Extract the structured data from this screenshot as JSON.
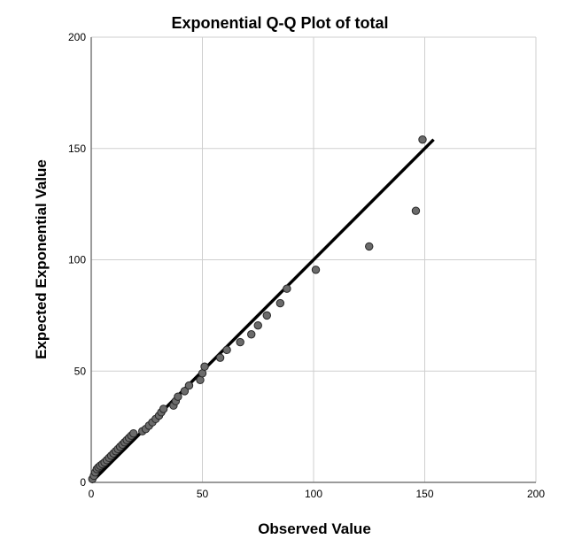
{
  "chart_data": {
    "type": "scatter",
    "title": "Exponential Q-Q Plot of total",
    "xlabel": "Observed Value",
    "ylabel": "Expected Exponential Value",
    "xlim": [
      0,
      200
    ],
    "ylim": [
      0,
      200
    ],
    "xticks": [
      "0",
      "50",
      "100",
      "150",
      "200"
    ],
    "yticks": [
      "0",
      "50",
      "100",
      "150",
      "200"
    ],
    "grid": true,
    "reference_line": {
      "x": [
        0,
        154
      ],
      "y": [
        0,
        154
      ]
    },
    "colors": {
      "point_fill": "#6b6b6b",
      "point_stroke": "#262626",
      "line": "#000000",
      "grid": "#cfcfcf"
    },
    "x": [
      0.5,
      1.2,
      1.8,
      2.5,
      3.2,
      4.0,
      5.0,
      6.0,
      7.0,
      8.0,
      9.0,
      10.0,
      11.0,
      12.0,
      13.0,
      14.0,
      15.0,
      16.0,
      17.0,
      18.0,
      19.0,
      23.0,
      24.5,
      26.0,
      27.5,
      29.0,
      30.5,
      31.5,
      32.5,
      37.0,
      38.0,
      39.0,
      42.0,
      44.0,
      49.0,
      50.0,
      51.0,
      58.0,
      61.0,
      67.0,
      72.0,
      75.0,
      79.0,
      85.0,
      88.0,
      101.0,
      125.0,
      146.0,
      149.0
    ],
    "y": [
      1.5,
      3.0,
      4.5,
      6.0,
      6.8,
      7.5,
      8.2,
      9.0,
      10.0,
      11.0,
      12.0,
      13.0,
      14.0,
      15.0,
      16.0,
      17.0,
      18.0,
      19.0,
      20.0,
      21.0,
      22.0,
      23.0,
      24.0,
      25.5,
      27.0,
      28.5,
      30.0,
      31.5,
      33.0,
      34.5,
      36.5,
      38.5,
      41.0,
      43.5,
      46.0,
      49.0,
      52.0,
      56.0,
      59.5,
      63.0,
      66.5,
      70.5,
      75.0,
      80.5,
      87.0,
      95.5,
      106.0,
      122.0,
      154.0
    ]
  }
}
